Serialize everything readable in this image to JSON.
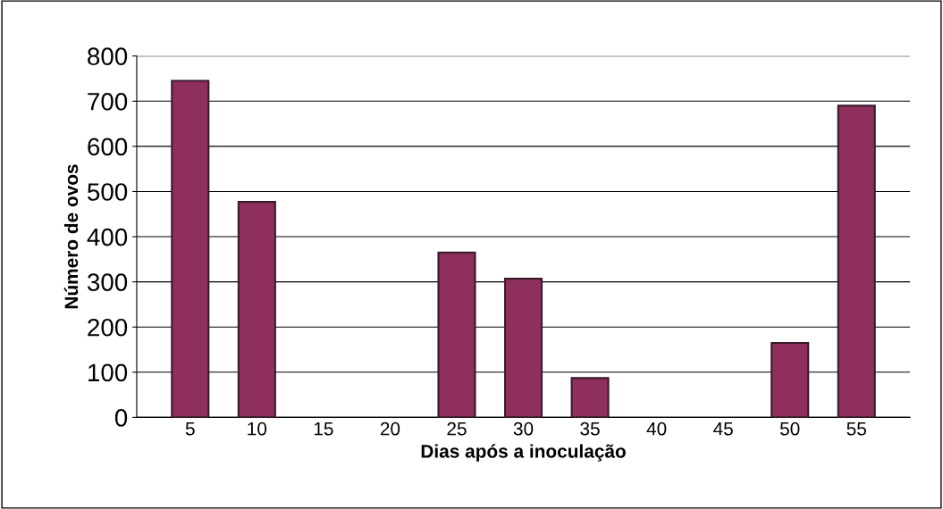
{
  "chart_data": {
    "type": "bar",
    "xlabel": "Dias após a inoculação",
    "ylabel": "Número de ovos",
    "categories": [
      "5",
      "10",
      "15",
      "20",
      "25",
      "30",
      "35",
      "40",
      "45",
      "50",
      "55"
    ],
    "values": [
      745,
      477,
      0,
      0,
      365,
      307,
      87,
      0,
      0,
      165,
      690
    ],
    "color": "#8e2f5e",
    "ylim": [
      0,
      800
    ],
    "yticks": [
      0,
      100,
      200,
      300,
      400,
      500,
      600,
      700,
      800
    ],
    "grid": "y"
  }
}
